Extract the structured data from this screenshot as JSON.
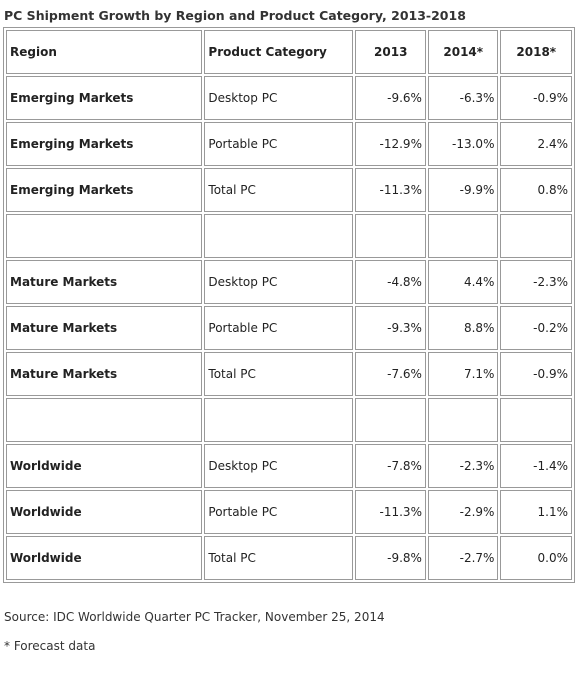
{
  "title": "PC Shipment Growth by Region and Product Category, 2013-2018",
  "table": {
    "header": [
      "Region",
      "Product Category",
      "2013",
      "2014*",
      "2018*"
    ],
    "rows": [
      [
        "Emerging Markets",
        "Desktop PC",
        "-9.6%",
        "-6.3%",
        "-0.9%"
      ],
      [
        "Emerging Markets",
        "Portable PC",
        "-12.9%",
        "-13.0%",
        "2.4%"
      ],
      [
        "Emerging Markets",
        "Total PC",
        "-11.3%",
        "-9.9%",
        "0.8%"
      ],
      null,
      [
        "Mature Markets",
        "Desktop PC",
        "-4.8%",
        "4.4%",
        "-2.3%"
      ],
      [
        "Mature Markets",
        "Portable PC",
        "-9.3%",
        "8.8%",
        "-0.2%"
      ],
      [
        "Mature Markets",
        "Total PC",
        "-7.6%",
        "7.1%",
        "-0.9%"
      ],
      null,
      [
        "Worldwide",
        "Desktop PC",
        "-7.8%",
        "-2.3%",
        "-1.4%"
      ],
      [
        "Worldwide",
        "Portable PC",
        "-11.3%",
        "-2.9%",
        "1.1%"
      ],
      [
        "Worldwide",
        "Total PC",
        "-9.8%",
        "-2.7%",
        "0.0%"
      ]
    ]
  },
  "source": "Source:  IDC Worldwide Quarter PC Tracker, November 25, 2014",
  "footnote": "* Forecast data"
}
